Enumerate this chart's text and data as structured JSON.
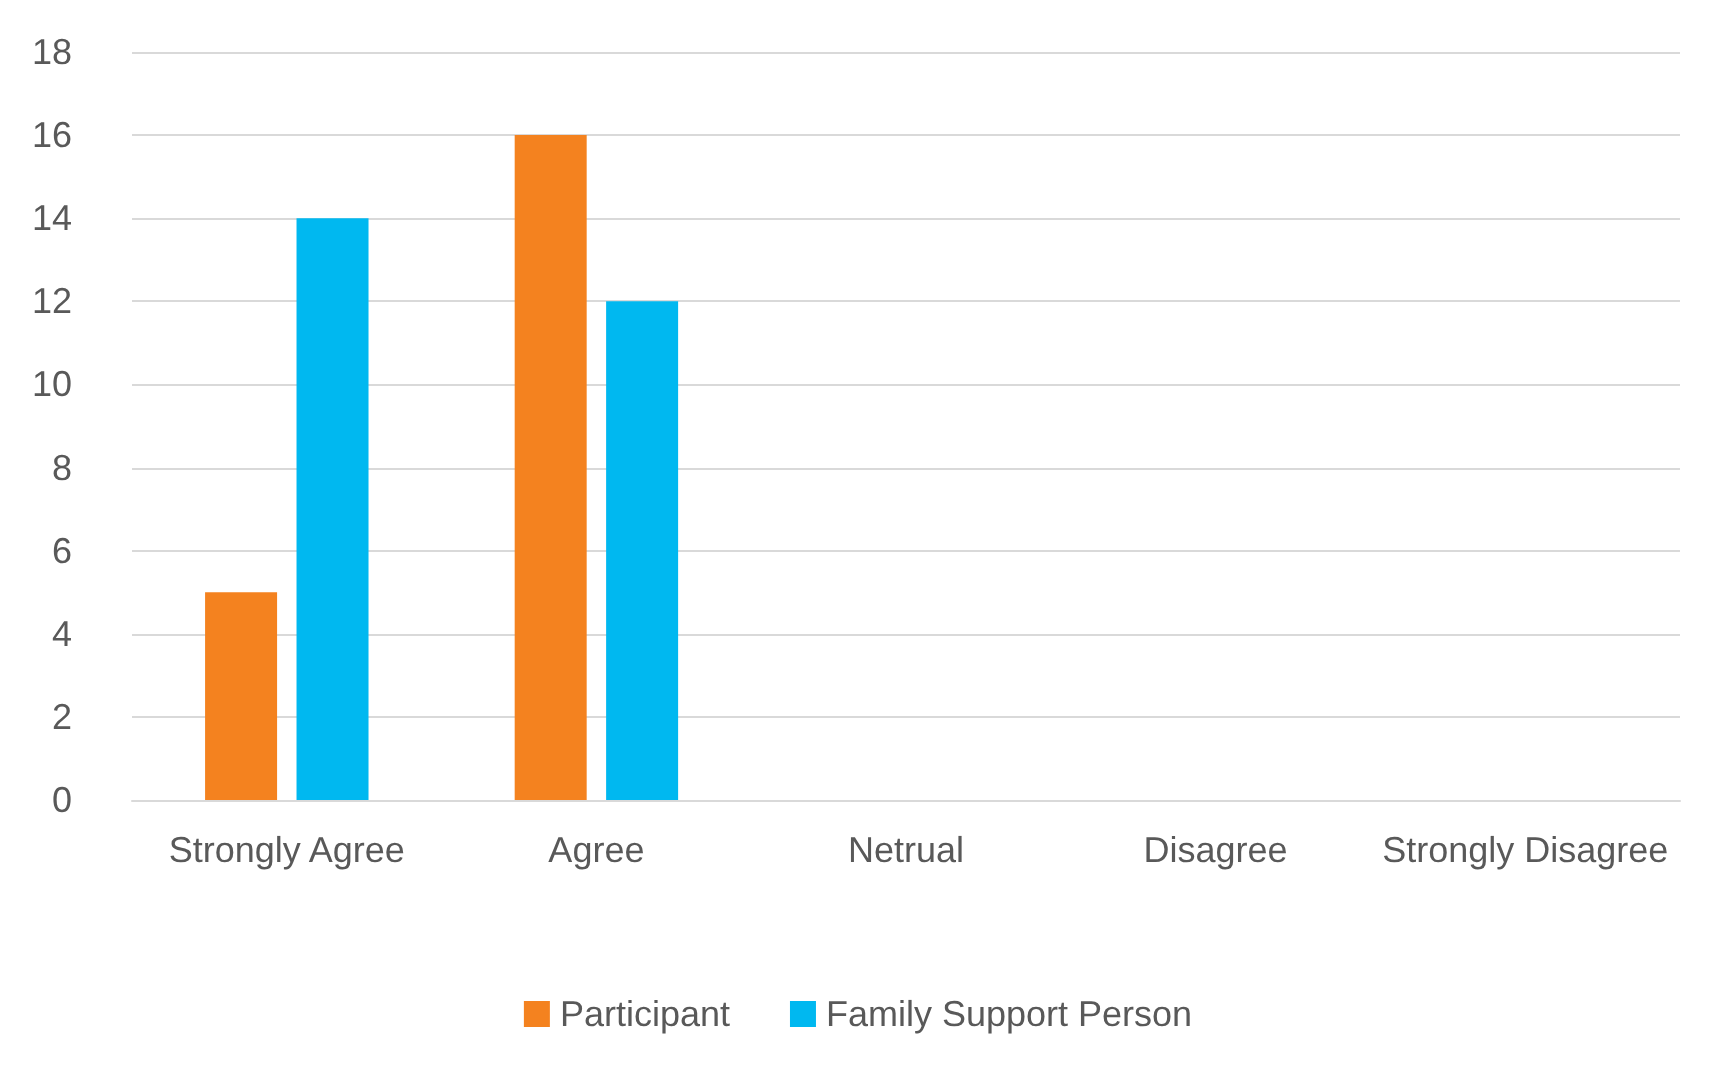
{
  "chart_data": {
    "type": "bar",
    "categories": [
      "Strongly Agree",
      "Agree",
      "Netrual",
      "Disagree",
      "Strongly Disagree"
    ],
    "series": [
      {
        "name": "Participant",
        "color": "#f4821f",
        "values": [
          5,
          16,
          0,
          0,
          0
        ]
      },
      {
        "name": "Family Support Person",
        "color": "#00b8f0",
        "values": [
          14,
          12,
          0,
          0,
          0
        ]
      }
    ],
    "ylim": [
      0,
      18
    ],
    "yticks": [
      0,
      2,
      4,
      6,
      8,
      10,
      12,
      14,
      16,
      18
    ],
    "grid": "y",
    "legend": "bottom"
  }
}
